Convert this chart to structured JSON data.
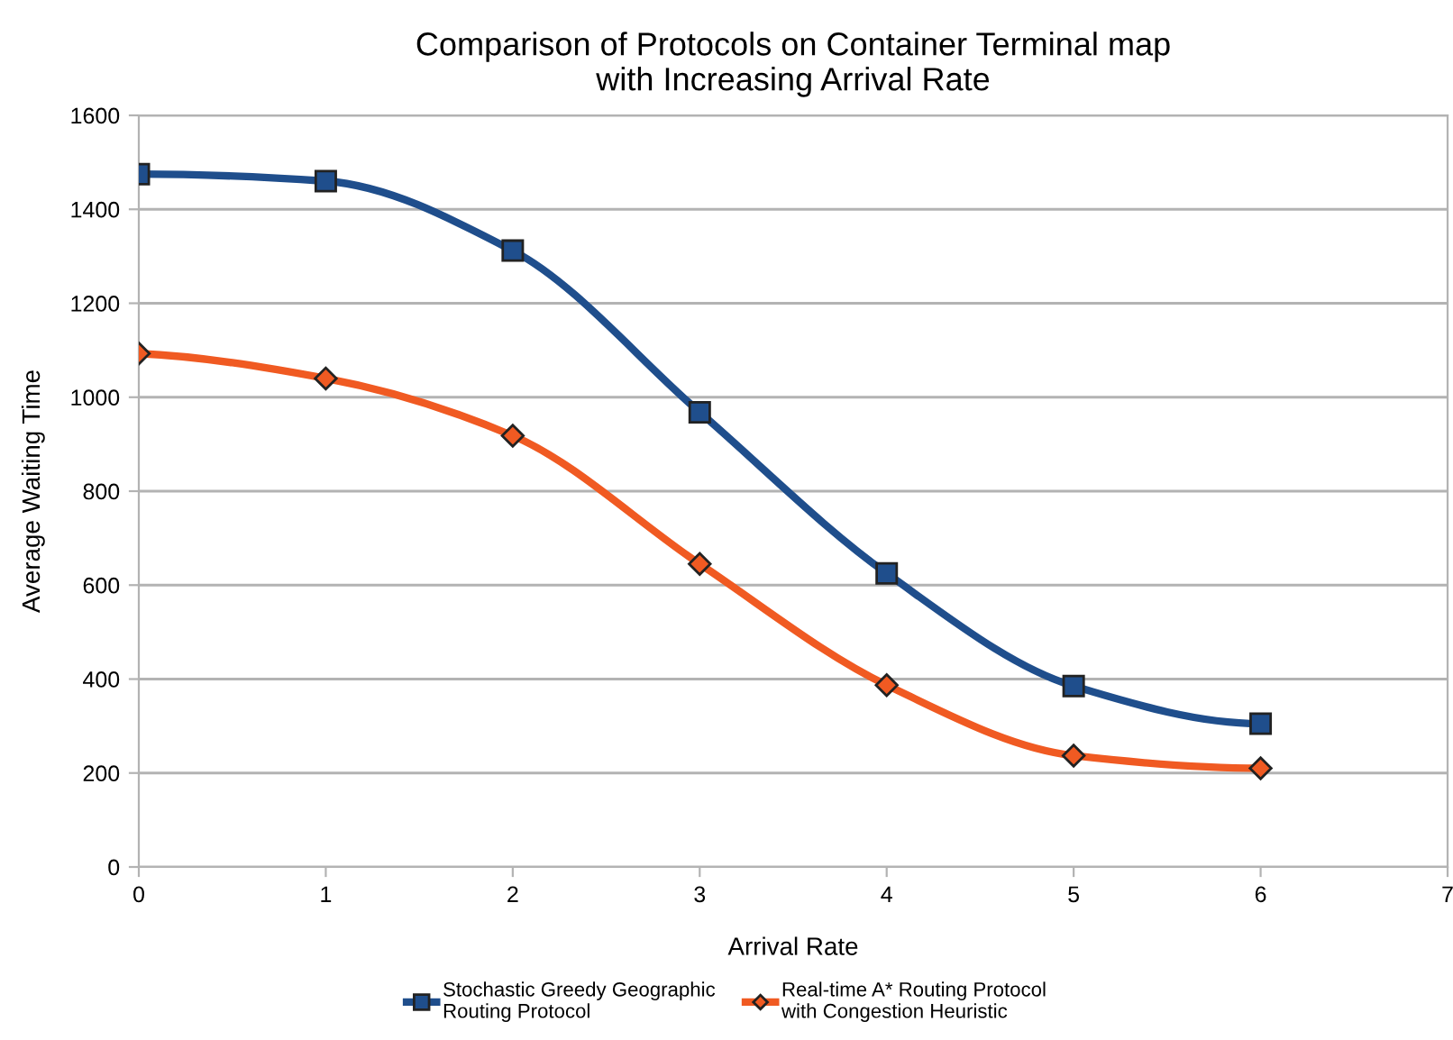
{
  "chart_data": {
    "type": "line",
    "title": "Comparison of Protocols on Container Terminal map\nwith Increasing Arrival Rate",
    "xlabel": "Arrival Rate",
    "ylabel": "Average Waiting Time",
    "x": [
      0,
      1,
      2,
      3,
      4,
      5,
      6
    ],
    "series": [
      {
        "name": "Stochastic Greedy Geographic\nRouting Protocol",
        "color": "#1f4e8c",
        "marker": "square",
        "values": [
          1475,
          1460,
          1312,
          968,
          625,
          385,
          305
        ]
      },
      {
        "name": "Real-time A* Routing Protocol\nwith Congestion Heuristic",
        "color": "#f05a22",
        "marker": "diamond",
        "values": [
          1093,
          1040,
          918,
          645,
          387,
          237,
          210
        ]
      }
    ],
    "xlim": [
      0,
      7
    ],
    "xticks": [
      0,
      1,
      2,
      3,
      4,
      5,
      6,
      7
    ],
    "ylim": [
      0,
      1600
    ],
    "yticks": [
      0,
      200,
      400,
      600,
      800,
      1000,
      1200,
      1400,
      1600
    ],
    "grid": "y",
    "legend": "bottom",
    "line_style": "solid"
  }
}
